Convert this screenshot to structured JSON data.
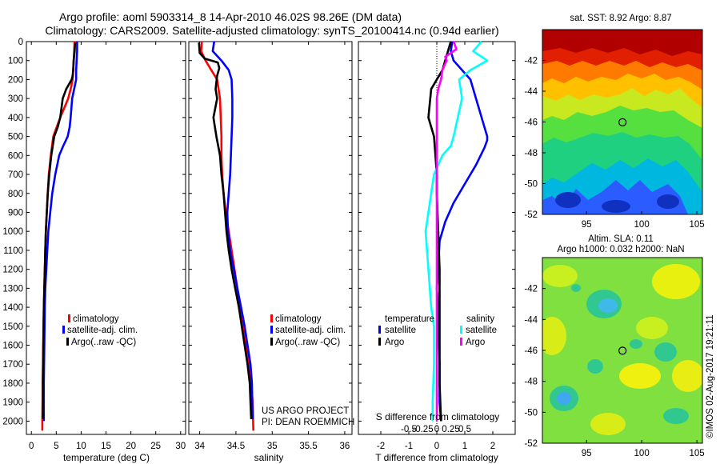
{
  "header": {
    "line1": "Argo profile: aoml 5903314_8 14-Apr-2010 46.02S 98.26E (DM data)",
    "line2": "Climatology: CARS2009. Satellite-adjusted climatology: synTS_20100414.nc (0.94d earlier)"
  },
  "colors": {
    "red": "#ff0000",
    "blue": "#0000ff",
    "black": "#000000",
    "cyan": "#00ffff",
    "magenta": "#ff00ff"
  },
  "credits": {
    "line1": "US ARGO PROJECT",
    "line2": "PI: DEAN ROEMMICH"
  },
  "stamp": "©IMOS 02-Aug-2017 19:21:11",
  "chart_data": [
    {
      "type": "line",
      "xlabel": "temperature (deg C)",
      "ylabel": "",
      "xlim": [
        -1,
        31
      ],
      "ylim": [
        2070,
        0
      ],
      "xticks": [
        0,
        5,
        10,
        15,
        20,
        25,
        30
      ],
      "yticks": [
        0,
        100,
        200,
        300,
        400,
        500,
        600,
        700,
        800,
        900,
        1000,
        1100,
        1200,
        1300,
        1400,
        1500,
        1600,
        1700,
        1800,
        1900,
        2000
      ],
      "legend": [
        "climatology",
        "satellite-adj. clim.",
        "Argo(..raw -QC)"
      ],
      "series": [
        {
          "name": "climatology",
          "color": "red",
          "x": [
            8.7,
            8.6,
            8.5,
            8.4,
            8.3,
            7.9,
            7.4,
            6.6,
            5.8,
            5.1,
            4.4,
            3.9,
            3.5,
            3.3,
            3.1,
            2.9,
            2.8,
            2.7,
            2.6,
            2.5,
            2.4,
            2.3,
            2.2,
            2.2
          ],
          "y": [
            0,
            50,
            100,
            150,
            200,
            250,
            300,
            350,
            400,
            450,
            500,
            600,
            700,
            800,
            900,
            1000,
            1100,
            1200,
            1300,
            1400,
            1600,
            1800,
            2000,
            2050
          ]
        },
        {
          "name": "satellite-adj. clim.",
          "color": "blue",
          "x": [
            9.2,
            9.2,
            9.1,
            9.0,
            9.0,
            8.6,
            8.2,
            7.9,
            7.7,
            7.3,
            6.4,
            5.6,
            4.8,
            4.2,
            3.8,
            3.4,
            3.2,
            3.0,
            2.8,
            2.7,
            2.6,
            2.5,
            2.5
          ],
          "y": [
            0,
            50,
            100,
            150,
            200,
            250,
            300,
            400,
            450,
            500,
            550,
            600,
            700,
            800,
            900,
            1000,
            1100,
            1200,
            1300,
            1400,
            1600,
            1800,
            2000
          ]
        },
        {
          "name": "Argo(..raw -QC)",
          "color": "black",
          "x": [
            8.8,
            8.7,
            8.5,
            8.4,
            8.3,
            8.1,
            7.0,
            6.3,
            5.8,
            5.3,
            4.6,
            4.0,
            3.6,
            3.3,
            3.1,
            2.9,
            2.8,
            2.7,
            2.6,
            2.5,
            2.4,
            2.3,
            2.3
          ],
          "y": [
            5,
            50,
            100,
            150,
            180,
            200,
            250,
            300,
            400,
            450,
            500,
            600,
            700,
            800,
            900,
            1000,
            1100,
            1200,
            1300,
            1400,
            1600,
            1800,
            1990
          ]
        }
      ]
    },
    {
      "type": "line",
      "xlabel": "salinity",
      "ylabel": "",
      "xlim": [
        33.85,
        36.1
      ],
      "ylim": [
        2070,
        0
      ],
      "xticks": [
        34,
        34.5,
        35,
        35.5,
        36
      ],
      "xticklabels": [
        "34",
        "34.5",
        "35",
        "35.5",
        "36"
      ],
      "legend": [
        "climatology",
        "satellite-adj. clim.",
        "Argo(..raw -QC)"
      ],
      "series": [
        {
          "name": "climatology",
          "color": "red",
          "x": [
            34.03,
            34.02,
            34.08,
            34.16,
            34.24,
            34.28,
            34.29,
            34.3,
            34.3,
            34.31,
            34.33,
            34.36,
            34.4,
            34.44,
            34.48,
            34.52,
            34.56,
            34.6,
            34.64,
            34.68,
            34.71,
            34.73,
            34.74
          ],
          "y": [
            0,
            50,
            100,
            150,
            200,
            300,
            400,
            500,
            600,
            700,
            800,
            900,
            1000,
            1100,
            1200,
            1300,
            1400,
            1500,
            1600,
            1700,
            1800,
            1900,
            2050
          ]
        },
        {
          "name": "satellite-adj. clim.",
          "color": "blue",
          "x": [
            34.2,
            34.18,
            34.3,
            34.4,
            34.44,
            34.45,
            34.45,
            34.44,
            34.43,
            34.42,
            34.4,
            34.38,
            34.39,
            34.42,
            34.47,
            34.52,
            34.57,
            34.62,
            34.66,
            34.7,
            34.72,
            34.73
          ],
          "y": [
            0,
            50,
            100,
            150,
            200,
            300,
            400,
            500,
            600,
            700,
            800,
            900,
            1000,
            1100,
            1200,
            1300,
            1400,
            1500,
            1600,
            1700,
            1800,
            1990
          ]
        },
        {
          "name": "Argo(..raw -QC)",
          "color": "black",
          "x": [
            33.99,
            34.0,
            34.07,
            34.25,
            34.27,
            34.24,
            34.22,
            34.24,
            34.19,
            34.21,
            34.23,
            34.28,
            34.3,
            34.33,
            34.35,
            34.37,
            34.4,
            34.44,
            34.49,
            34.54,
            34.58,
            34.62,
            34.66,
            34.69,
            34.7,
            34.71
          ],
          "y": [
            5,
            60,
            90,
            110,
            140,
            180,
            250,
            300,
            400,
            450,
            500,
            600,
            700,
            800,
            900,
            1000,
            1100,
            1200,
            1300,
            1400,
            1500,
            1600,
            1700,
            1800,
            1900,
            1990
          ]
        }
      ]
    },
    {
      "type": "line",
      "xlabel": "T difference from climatology",
      "xlabel2": "S difference from climatology",
      "xlim": [
        -2.8,
        2.8
      ],
      "ylim": [
        2070,
        0
      ],
      "xticks": [
        -2,
        -1,
        0,
        1,
        2
      ],
      "xticklabels": [
        "-2",
        "-1",
        "0",
        "1",
        "2"
      ],
      "xticks2": [
        -1.0,
        -0.5,
        0,
        0.5,
        1.0
      ],
      "xticklabels2": [
        "-0.5",
        "-0.25",
        "0",
        "0.25",
        "0.5"
      ],
      "legend_titles": [
        "temperature",
        "salinity"
      ],
      "legend": [
        "satellite",
        "Argo",
        "satellite",
        "Argo"
      ],
      "series": [
        {
          "name": "satellite",
          "group": "temperature",
          "color": "blue",
          "x": [
            0.55,
            0.5,
            0.6,
            1.2,
            1.3,
            1.5,
            1.7,
            1.8,
            1.8,
            1.7,
            1.4,
            1.0,
            0.6,
            0.3,
            0.1,
            0.05,
            0.0,
            0.05,
            0.05,
            0.1,
            0.1,
            0.15
          ],
          "y": [
            0,
            50,
            100,
            200,
            250,
            350,
            450,
            500,
            520,
            560,
            650,
            750,
            850,
            950,
            1050,
            1200,
            1300,
            1400,
            1500,
            1700,
            1900,
            2000
          ]
        },
        {
          "name": "Argo",
          "group": "temperature",
          "color": "black",
          "x": [
            0.5,
            0.4,
            0.3,
            0.2,
            0.0,
            -0.2,
            -0.3,
            -0.2,
            -0.1,
            -0.05,
            0.0,
            0.0,
            0.05,
            0.1,
            0.1,
            0.1,
            0.15
          ],
          "y": [
            0,
            50,
            100,
            150,
            200,
            250,
            400,
            450,
            500,
            600,
            700,
            800,
            1000,
            1200,
            1500,
            1800,
            2000
          ]
        },
        {
          "name": "satellite",
          "group": "salinity",
          "color": "cyan",
          "x": [
            1.6,
            1.3,
            1.8,
            1.2,
            0.8,
            0.9,
            0.6,
            0.5,
            0.2,
            -0.1,
            -0.2,
            -0.3,
            -0.4,
            -0.3,
            -0.2,
            -0.1,
            -0.1,
            -0.15,
            -0.15
          ],
          "y": [
            0,
            50,
            100,
            150,
            200,
            300,
            500,
            550,
            600,
            700,
            800,
            900,
            1000,
            1200,
            1400,
            1500,
            1700,
            1900,
            2000
          ]
        },
        {
          "name": "Argo",
          "group": "salinity",
          "color": "magenta",
          "x": [
            0.6,
            0.7,
            0.3,
            0.35,
            0.2,
            0.15,
            0.05,
            0.0,
            0.0,
            0.0,
            0.0,
            0.0,
            0.0,
            0.0,
            0.0,
            0.0
          ],
          "y": [
            0,
            40,
            80,
            100,
            150,
            200,
            250,
            300,
            400,
            500,
            700,
            900,
            1200,
            1500,
            1800,
            2000
          ]
        }
      ]
    },
    {
      "type": "heatmap",
      "title": "sat. SST: 8.92 Argo: 8.87",
      "xlim": [
        91,
        105.5
      ],
      "ylim": [
        -52,
        -40
      ],
      "xticks": [
        95,
        100,
        105
      ],
      "yticks": [
        -52,
        -50,
        -48,
        -46,
        -44,
        -42
      ],
      "marker": {
        "lon": 98.26,
        "lat": -46.02
      }
    },
    {
      "type": "heatmap",
      "title": "Altim. SLA: 0.11",
      "subtitle": "Argo h1000: 0.032 h2000: NaN",
      "xlim": [
        91,
        105.5
      ],
      "ylim": [
        -52,
        -40
      ],
      "xticks": [
        95,
        100,
        105
      ],
      "yticks": [
        -52,
        -50,
        -48,
        -46,
        -44,
        -42
      ],
      "marker": {
        "lon": 98.26,
        "lat": -46.02
      }
    }
  ]
}
